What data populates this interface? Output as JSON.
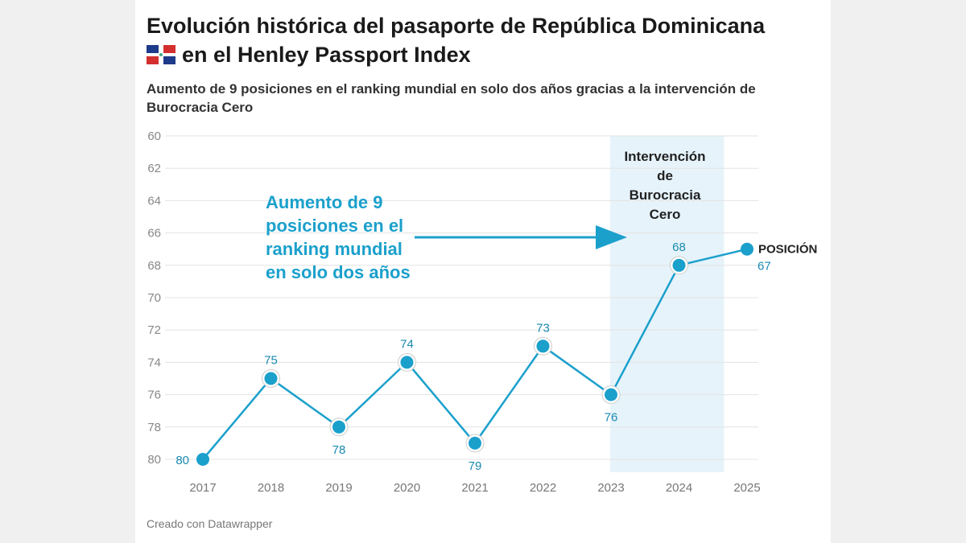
{
  "title_line1": "Evolución histórica del pasaporte de República Dominicana",
  "title_line2": "en el Henley Passport Index",
  "subtitle": "Aumento de 9 posiciones en el ranking mundial en solo dos años gracias a la intervención de Burocracia Cero",
  "footer": "Creado con Datawrapper",
  "colors": {
    "line": "#1ba0cc",
    "highlight": "#e6f3fa",
    "annotation": "#1ba0cc"
  },
  "chart_data": {
    "type": "line",
    "x": [
      2017,
      2018,
      2019,
      2020,
      2021,
      2022,
      2023,
      2024,
      2025
    ],
    "series": [
      {
        "name": "POSICIÓN",
        "values": [
          80,
          75,
          78,
          74,
          79,
          73,
          76,
          68,
          67
        ]
      }
    ],
    "ylim": [
      80,
      60
    ],
    "y_reversed": true,
    "yticks": [
      60,
      62,
      64,
      66,
      68,
      70,
      72,
      74,
      76,
      78,
      80
    ],
    "grid": true,
    "highlight_range": {
      "from": 2023,
      "to": 2024.65,
      "label": "Intervención de Burocracia Cero"
    },
    "annotation": "Aumento de 9 posiciones en el ranking mundial en solo dos años",
    "annotation_lines": [
      "Aumento de 9",
      "posiciones en el",
      "ranking mundial",
      "en solo dos años"
    ],
    "highlight_label_lines": [
      "Intervención",
      "de",
      "Burocracia",
      "Cero"
    ]
  }
}
